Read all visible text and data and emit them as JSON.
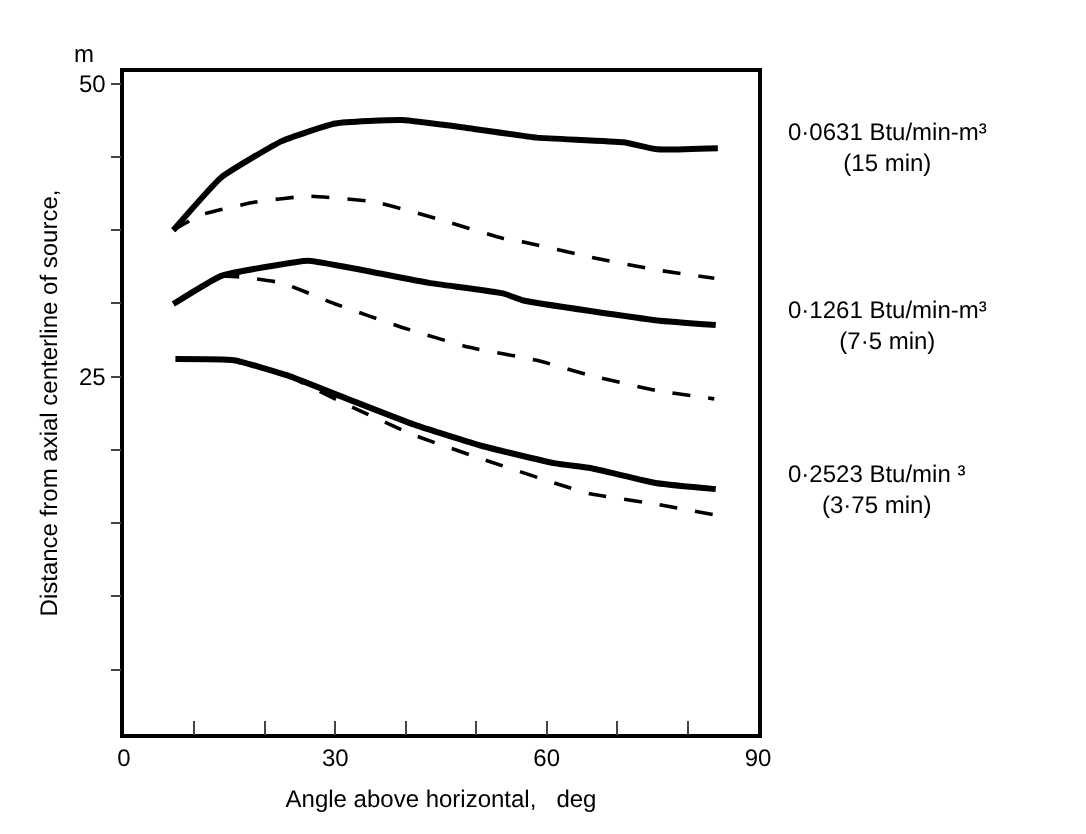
{
  "chart_data": {
    "type": "line",
    "xlabel": "Angle above horizontal,   deg",
    "ylabel": "Distance from axial centerline of source,",
    "xlim": [
      0,
      90
    ],
    "xticks": [
      0,
      {
        "value": 10,
        "label": null
      },
      {
        "value": 20,
        "label": null
      },
      30,
      {
        "value": 40,
        "label": null
      },
      {
        "value": 50,
        "label": null
      },
      60,
      {
        "value": 70,
        "label": null
      },
      {
        "value": 80,
        "label": null
      },
      90
    ],
    "ylim": [
      -5.5,
      51
    ],
    "yticks": [
      {
        "value": 0,
        "label": null
      },
      {
        "value": 6.25,
        "label": null
      },
      {
        "value": 12.5,
        "label": null
      },
      {
        "value": 18.75,
        "label": null
      },
      25,
      {
        "value": 31.25,
        "label": null
      },
      {
        "value": 37.5,
        "label": null
      },
      {
        "value": 43.75,
        "label": null
      },
      50
    ],
    "grid": false,
    "marker": "none",
    "series": [
      {
        "color": "#000000",
        "line_style": "solid",
        "x": [
          7,
          13.8,
          22.4,
          30,
          39.5,
          49,
          58.6,
          70.9,
          75.7,
          84.3
        ],
        "values": [
          37.5,
          42,
          45.1,
          46.6,
          46.9,
          46.2,
          45.4,
          45,
          44.4,
          44.5
        ]
      },
      {
        "color": "#000000",
        "line_style": "dashed",
        "x": [
          7,
          10.9,
          18.6,
          26.2,
          35.7,
          44.3,
          53.8,
          56.7,
          66.2,
          75.7,
          83.8
        ],
        "values": [
          37.5,
          38.8,
          39.9,
          40.4,
          39.9,
          38.5,
          36.8,
          36.5,
          35.2,
          34.1,
          33.4
        ]
      },
      {
        "color": "#000000",
        "line_style": "solid",
        "x": [
          7,
          13.8,
          20.5,
          26.2,
          33.8,
          43.3,
          53.8,
          56.7,
          66.2,
          75.7,
          84
        ],
        "values": [
          31.2,
          33.6,
          34.4,
          34.9,
          34.1,
          33,
          32.1,
          31.5,
          30.6,
          29.8,
          29.4
        ]
      },
      {
        "color": "#000000",
        "line_style": "dashed",
        "x": [
          13.8,
          16.7,
          22.4,
          30,
          39.5,
          49,
          58.6,
          66.2,
          75.7,
          83.8
        ],
        "values": [
          33.6,
          33.5,
          33,
          31.2,
          29.2,
          27.5,
          26.4,
          25.1,
          23.8,
          23.1
        ]
      },
      {
        "color": "#000000",
        "line_style": "solid",
        "x": [
          7.3,
          15.6,
          23.2,
          31.7,
          41.2,
          50.7,
          61.2,
          66.2,
          75.7,
          84
        ],
        "values": [
          26.5,
          26.4,
          25.1,
          23.1,
          20.9,
          19.1,
          17.6,
          17.2,
          15.9,
          15.4
        ]
      },
      {
        "color": "#000000",
        "line_style": "dashed",
        "x": [
          23.2,
          31.7,
          41.2,
          50.7,
          61.2,
          66.2,
          75.7,
          83.8
        ],
        "values": [
          25.1,
          22.6,
          20,
          18,
          15.9,
          15,
          14.1,
          13.2
        ]
      }
    ],
    "annotations": [
      "m",
      "0·0631 Btu/min-m³\n(15 min)",
      "0·1261 Btu/min-m³\n(7·5 min)",
      "0·2523 Btu/min ³\n(3·75 min)"
    ]
  }
}
